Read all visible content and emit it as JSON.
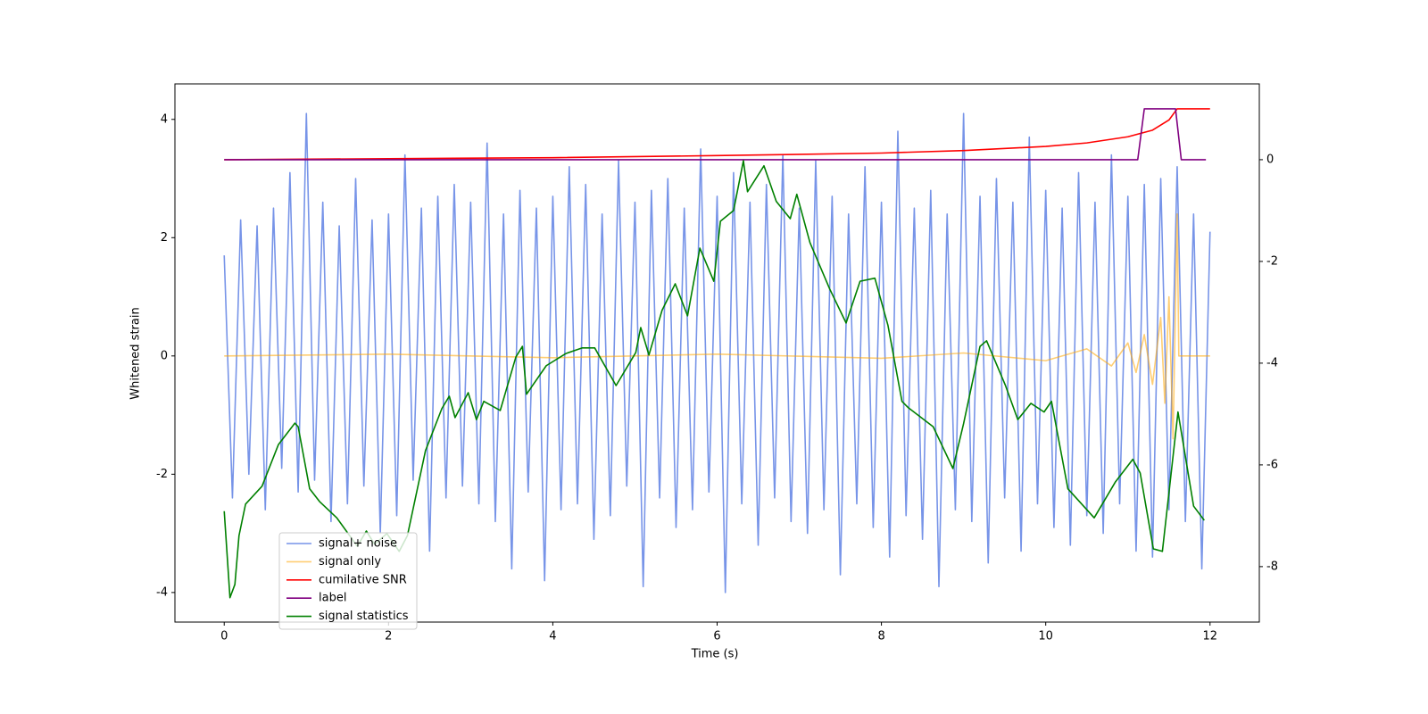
{
  "chart_data": {
    "type": "line",
    "xlabel": "Time (s)",
    "ylabel": "Whitened strain",
    "xlim": [
      -0.6,
      12.6
    ],
    "ylim": [
      -4.5,
      4.6
    ],
    "y2lim": [
      -9.09,
      1.49
    ],
    "xticks": [
      0,
      2,
      4,
      6,
      8,
      10,
      12
    ],
    "yticks": [
      -4,
      -2,
      0,
      2,
      4
    ],
    "y2ticks": [
      -8,
      -6,
      -4,
      -2,
      0
    ],
    "grid": false,
    "legend": "lower left",
    "series": [
      {
        "name": "signal+ noise",
        "color": "#7794e8",
        "x": [
          0,
          0.1,
          0.2,
          0.3,
          0.4,
          0.5,
          0.6,
          0.7,
          0.8,
          0.9,
          1,
          1.1,
          1.2,
          1.3,
          1.4,
          1.5,
          1.6,
          1.7,
          1.8,
          1.9,
          2,
          2.1,
          2.2,
          2.3,
          2.4,
          2.5,
          2.6,
          2.7,
          2.8,
          2.9,
          3,
          3.1,
          3.2,
          3.3,
          3.4,
          3.5,
          3.6,
          3.7,
          3.8,
          3.9,
          4,
          4.1,
          4.2,
          4.3,
          4.4,
          4.5,
          4.6,
          4.7,
          4.8,
          4.9,
          5,
          5.1,
          5.2,
          5.3,
          5.4,
          5.5,
          5.6,
          5.7,
          5.8,
          5.9,
          6,
          6.1,
          6.2,
          6.3,
          6.4,
          6.5,
          6.6,
          6.7,
          6.8,
          6.9,
          7,
          7.1,
          7.2,
          7.3,
          7.4,
          7.5,
          7.6,
          7.7,
          7.8,
          7.9,
          8,
          8.1,
          8.2,
          8.3,
          8.4,
          8.5,
          8.6,
          8.7,
          8.8,
          8.9,
          9,
          9.1,
          9.2,
          9.3,
          9.4,
          9.5,
          9.6,
          9.7,
          9.8,
          9.9,
          10,
          10.1,
          10.2,
          10.3,
          10.4,
          10.5,
          10.6,
          10.7,
          10.8,
          10.9,
          11,
          11.1,
          11.2,
          11.3,
          11.4,
          11.5,
          11.6,
          11.7,
          11.8,
          11.9,
          12
        ],
        "values": [
          1.7,
          -2.4,
          2.3,
          -2.0,
          2.2,
          -2.6,
          2.5,
          -1.9,
          3.1,
          -2.3,
          4.1,
          -2.1,
          2.6,
          -2.8,
          2.2,
          -2.5,
          3.0,
          -2.2,
          2.3,
          -3.0,
          2.4,
          -2.7,
          3.4,
          -2.1,
          2.5,
          -3.3,
          2.7,
          -2.4,
          2.9,
          -2.2,
          2.6,
          -2.5,
          3.6,
          -2.8,
          2.4,
          -3.6,
          2.8,
          -2.3,
          2.5,
          -3.8,
          2.7,
          -2.6,
          3.2,
          -2.5,
          2.9,
          -3.1,
          2.4,
          -2.7,
          3.3,
          -2.2,
          2.6,
          -3.9,
          2.8,
          -2.4,
          3.0,
          -2.9,
          2.5,
          -2.6,
          3.5,
          -2.3,
          2.7,
          -4.0,
          3.1,
          -2.5,
          2.6,
          -3.2,
          2.9,
          -2.4,
          3.4,
          -2.8,
          2.5,
          -3.0,
          3.3,
          -2.6,
          2.7,
          -3.7,
          2.4,
          -2.5,
          3.2,
          -2.9,
          2.6,
          -3.4,
          3.8,
          -2.7,
          2.5,
          -3.1,
          2.8,
          -3.9,
          2.4,
          -2.6,
          4.1,
          -2.8,
          2.7,
          -3.5,
          3.0,
          -2.4,
          2.6,
          -3.3,
          3.7,
          -2.5,
          2.8,
          -2.9,
          2.5,
          -3.2,
          3.1,
          -2.7,
          2.6,
          -3.0,
          3.4,
          -2.5,
          2.7,
          -3.3,
          2.9,
          -3.4,
          3.0,
          -2.6,
          3.2,
          -2.8,
          2.4,
          -3.6,
          2.1
        ],
        "axis": "y"
      },
      {
        "name": "signal only",
        "color": "#ffa500",
        "x": [
          0,
          2,
          4,
          6,
          8,
          9,
          10,
          10.5,
          10.8,
          11,
          11.1,
          11.2,
          11.3,
          11.4,
          11.45,
          11.5,
          11.55,
          11.6,
          11.62,
          12
        ],
        "values": [
          0,
          0.03,
          -0.03,
          0.03,
          -0.04,
          0.05,
          -0.08,
          0.12,
          -0.17,
          0.22,
          -0.28,
          0.36,
          -0.48,
          0.65,
          -0.8,
          1.0,
          -1.4,
          2.4,
          0,
          0
        ],
        "axis": "y"
      },
      {
        "name": "cumilative SNR",
        "color": "#ff0000",
        "x": [
          0,
          2,
          4,
          6,
          8,
          9,
          10,
          10.5,
          11,
          11.3,
          11.5,
          11.6,
          11.62,
          12
        ],
        "values": [
          0,
          0.02,
          0.04,
          0.08,
          0.13,
          0.18,
          0.26,
          0.33,
          0.45,
          0.58,
          0.78,
          1.0,
          1.0,
          1.0
        ],
        "axis": "y2"
      },
      {
        "name": "label",
        "color": "#800080",
        "x": [
          0,
          11.12,
          11.2,
          11.58,
          11.65,
          11.95
        ],
        "values": [
          0,
          0,
          1,
          1,
          0,
          0
        ],
        "axis": "y2"
      },
      {
        "name": "signal statistics",
        "color": "#008000",
        "x": [
          0,
          0.07,
          0.13,
          0.18,
          0.26,
          0.46,
          0.66,
          0.86,
          0.9,
          1.04,
          1.16,
          1.37,
          1.62,
          1.73,
          1.83,
          1.98,
          2.13,
          2.23,
          2.45,
          2.65,
          2.74,
          2.81,
          2.97,
          3.07,
          3.16,
          3.36,
          3.55,
          3.63,
          3.68,
          3.92,
          4.16,
          4.36,
          4.51,
          4.77,
          5.01,
          5.07,
          5.17,
          5.33,
          5.49,
          5.64,
          5.79,
          5.96,
          6.04,
          6.2,
          6.32,
          6.37,
          6.57,
          6.72,
          6.89,
          6.97,
          7.13,
          7.37,
          7.57,
          7.74,
          7.92,
          8.08,
          8.25,
          8.33,
          8.63,
          8.87,
          9.0,
          9.2,
          9.28,
          9.51,
          9.66,
          9.82,
          9.98,
          10.07,
          10.27,
          10.59,
          10.85,
          11.06,
          11.15,
          11.31,
          11.42,
          11.61,
          11.8,
          11.93
        ],
        "values": [
          -6.91,
          -8.61,
          -8.35,
          -7.39,
          -6.77,
          -6.42,
          -5.6,
          -5.18,
          -5.25,
          -6.47,
          -6.72,
          -7.04,
          -7.6,
          -7.3,
          -7.56,
          -7.35,
          -7.7,
          -7.39,
          -5.72,
          -4.89,
          -4.65,
          -5.07,
          -4.58,
          -5.11,
          -4.75,
          -4.93,
          -3.88,
          -3.67,
          -4.61,
          -4.05,
          -3.81,
          -3.7,
          -3.7,
          -4.44,
          -3.79,
          -3.3,
          -3.84,
          -2.96,
          -2.44,
          -3.07,
          -1.74,
          -2.39,
          -1.21,
          -1.0,
          -0.02,
          -0.63,
          -0.12,
          -0.82,
          -1.16,
          -0.68,
          -1.63,
          -2.54,
          -3.21,
          -2.39,
          -2.33,
          -3.26,
          -4.75,
          -4.88,
          -5.25,
          -6.07,
          -5.19,
          -3.67,
          -3.56,
          -4.44,
          -5.11,
          -4.79,
          -4.96,
          -4.75,
          -6.47,
          -7.04,
          -6.33,
          -5.89,
          -6.16,
          -7.65,
          -7.7,
          -4.96,
          -6.81,
          -7.09
        ],
        "axis": "y2"
      }
    ]
  }
}
